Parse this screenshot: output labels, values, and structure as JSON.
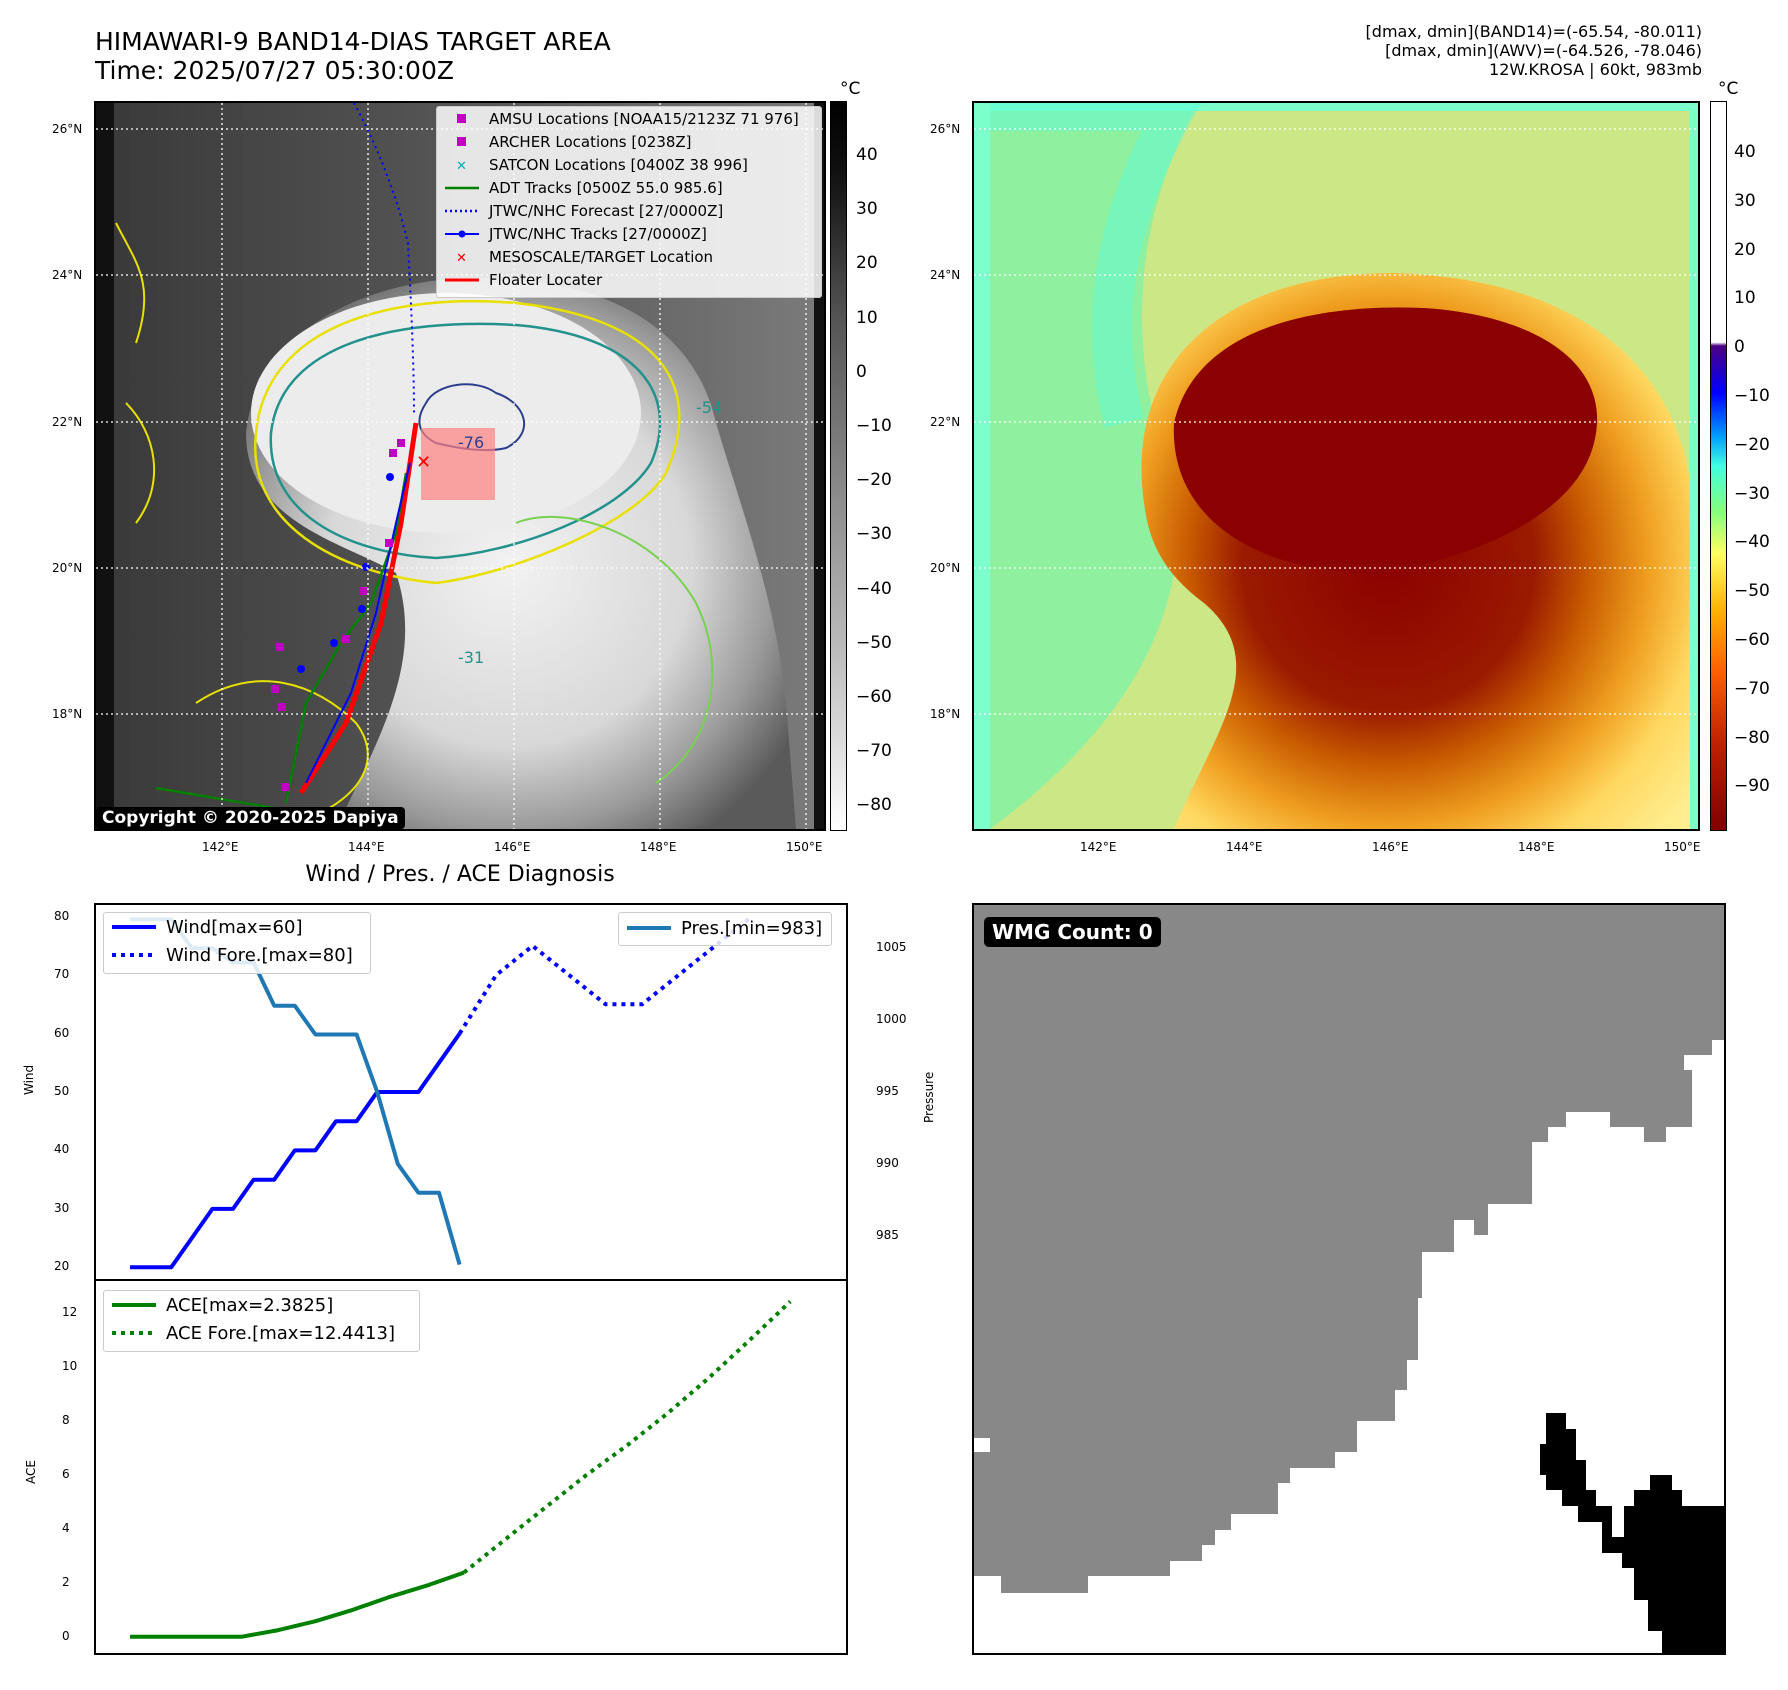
{
  "header": {
    "title_line1": "HIMAWARI-9 BAND14-DIAS TARGET AREA",
    "title_line2": "Time: 2025/07/27 05:30:00Z",
    "info_line1": "[dmax, dmin](BAND14)=(-65.54, -80.011)",
    "info_line2": "[dmax, dmin](AWV)=(-64.526, -78.046)",
    "info_line3": "12W.KROSA | 60kt, 983mb"
  },
  "map": {
    "lat_labels": [
      "26°N",
      "24°N",
      "22°N",
      "20°N",
      "18°N"
    ],
    "lon_labels": [
      "142°E",
      "144°E",
      "146°E",
      "148°E",
      "150°E"
    ],
    "copyright": "Copyright © 2020-2025 Dapiya",
    "contour_labels": [
      "-54",
      "-31",
      "-76"
    ],
    "colors": {
      "adt": "#008000",
      "jtwc": "#0000ff",
      "archer": "#c000c0",
      "satcon": "#00b0b0",
      "target": "#ff0000"
    }
  },
  "legend": {
    "items": [
      {
        "label": "AMSU Locations [NOAA15/2123Z 71 976]",
        "symbol": "magenta-square"
      },
      {
        "label": "ARCHER Locations [0238Z]",
        "symbol": "magenta-square"
      },
      {
        "label": "SATCON Locations [0400Z 38 996]",
        "symbol": "cyan-x"
      },
      {
        "label": "ADT Tracks [0500Z 55.0 985.6]",
        "symbol": "green-line"
      },
      {
        "label": "JTWC/NHC Forecast [27/0000Z]",
        "symbol": "blue-dotted-line"
      },
      {
        "label": "JTWC/NHC Tracks [27/0000Z]",
        "symbol": "blue-line-dot"
      },
      {
        "label": "MESOSCALE/TARGET Location",
        "symbol": "red-x"
      },
      {
        "label": "Floater Locater",
        "symbol": "red-line"
      }
    ]
  },
  "colorbar1": {
    "unit": "°C",
    "ticks": [
      "40",
      "30",
      "20",
      "10",
      "0",
      "−10",
      "−20",
      "−30",
      "−40",
      "−50",
      "−60",
      "−70",
      "−80"
    ]
  },
  "colorbar2": {
    "unit": "°C",
    "ticks": [
      "40",
      "30",
      "20",
      "10",
      "0",
      "−10",
      "−20",
      "−30",
      "−40",
      "−50",
      "−60",
      "−70",
      "−80",
      "−90"
    ]
  },
  "diagnosis": {
    "title": "Wind / Pres. / ACE Diagnosis"
  },
  "wmg": {
    "label": "WMG Count: 0"
  },
  "chart_data": [
    {
      "type": "line",
      "title": "Wind / Pres. / ACE Diagnosis",
      "ylabel": "Wind",
      "ylim": [
        18,
        82
      ],
      "yticks": [
        "80",
        "70",
        "60",
        "50",
        "40",
        "30",
        "20"
      ],
      "series": [
        {
          "name": "Wind[max=60]",
          "style": "solid",
          "color": "#0000ff",
          "values": [
            20,
            20,
            20,
            25,
            30,
            30,
            35,
            35,
            40,
            40,
            45,
            45,
            50,
            50,
            50,
            55,
            60
          ]
        },
        {
          "name": "Wind Fore.[max=80]",
          "style": "dotted",
          "color": "#0000ff",
          "values": [
            60,
            70,
            75,
            70,
            65,
            65,
            70,
            75,
            80
          ]
        }
      ]
    },
    {
      "type": "line",
      "ylabel": "Pressure",
      "ylim": [
        982,
        1008
      ],
      "yticks": [
        "1005",
        "1000",
        "995",
        "990",
        "985"
      ],
      "series": [
        {
          "name": "Pres.[min=983]",
          "style": "solid",
          "color": "#1f77b4",
          "values": [
            1007,
            1007,
            1007,
            1005,
            1005,
            1004,
            1004,
            1001,
            1001,
            999,
            999,
            999,
            995,
            990,
            988,
            988,
            983
          ]
        }
      ]
    },
    {
      "type": "line",
      "ylabel": "ACE",
      "ylim": [
        -0.6,
        13.2
      ],
      "yticks": [
        "12",
        "10",
        "8",
        "6",
        "4",
        "2",
        "0"
      ],
      "series": [
        {
          "name": "ACE[max=2.3825]",
          "style": "solid",
          "color": "#008000",
          "values": [
            0,
            0,
            0,
            0,
            0.25,
            0.58,
            1.0,
            1.48,
            1.9,
            2.3825
          ]
        },
        {
          "name": "ACE Fore.[max=12.4413]",
          "style": "dotted",
          "color": "#008000",
          "values": [
            2.3825,
            3.6,
            4.8,
            6.0,
            7.1,
            8.3,
            9.6,
            11.0,
            12.4413
          ]
        }
      ]
    }
  ]
}
